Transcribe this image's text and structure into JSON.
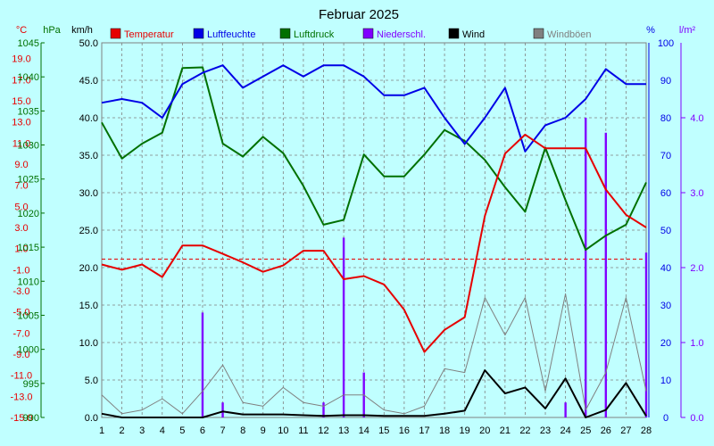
{
  "title": "Februar 2025",
  "colors": {
    "background": "#c0ffff",
    "grid": "#808080",
    "temperature": "#e60000",
    "humidity": "#0000e6",
    "pressure": "#007000",
    "precipitation": "#8000ff",
    "wind": "#000000",
    "gusts": "#808080"
  },
  "axis_units": {
    "temp": "°C",
    "pressure": "hPa",
    "wind": "km/h",
    "humidity": "%",
    "precip": "l/m²"
  },
  "axis_ticks": {
    "temp": [
      "19.0",
      "17.0",
      "15.0",
      "13.0",
      "11.0",
      "9.0",
      "7.0",
      "5.0",
      "3.0",
      "1.0",
      "-1.0",
      "-3.0",
      "-5.0",
      "-7.0",
      "-9.0",
      "-11.0",
      "-13.0",
      "-15.0"
    ],
    "pressure": [
      "1045",
      "1040",
      "1035",
      "1030",
      "1025",
      "1020",
      "1015",
      "1010",
      "1005",
      "1000",
      "995",
      "990"
    ],
    "wind": [
      "50.0",
      "45.0",
      "40.0",
      "35.0",
      "30.0",
      "25.0",
      "20.0",
      "15.0",
      "10.0",
      "5.0",
      "0.0"
    ],
    "humidity": [
      "100",
      "90",
      "80",
      "70",
      "60",
      "50",
      "40",
      "30",
      "20",
      "10",
      "0"
    ],
    "precip": [
      "4.0",
      "3.0",
      "2.0",
      "1.0",
      "0.0"
    ],
    "x": [
      "1",
      "2",
      "3",
      "4",
      "5",
      "6",
      "7",
      "8",
      "9",
      "10",
      "11",
      "12",
      "13",
      "14",
      "15",
      "16",
      "17",
      "18",
      "19",
      "20",
      "21",
      "22",
      "23",
      "24",
      "25",
      "26",
      "27",
      "28"
    ]
  },
  "legend": [
    {
      "label": "Temperatur",
      "color": "#e60000"
    },
    {
      "label": "Luftfeuchte",
      "color": "#0000e6"
    },
    {
      "label": "Luftdruck",
      "color": "#007000"
    },
    {
      "label": "Niederschl.",
      "color": "#8000ff"
    },
    {
      "label": "Wind",
      "color": "#000000"
    },
    {
      "label": "Windböen",
      "color": "#808080"
    }
  ],
  "chart_data": {
    "type": "line",
    "title": "Februar 2025",
    "x": [
      1,
      2,
      3,
      4,
      5,
      6,
      7,
      8,
      9,
      10,
      11,
      12,
      13,
      14,
      15,
      16,
      17,
      18,
      19,
      20,
      21,
      22,
      23,
      24,
      25,
      26,
      27,
      28
    ],
    "xlim": [
      1,
      28
    ],
    "grid": true,
    "legend_position": "top",
    "reference_line": {
      "axis": "temp",
      "value": 0.0
    },
    "series": [
      {
        "name": "Temperatur",
        "axis": "temp",
        "ylim": [
          -15,
          20.5
        ],
        "values": [
          -0.5,
          -1.0,
          -0.5,
          -1.7,
          1.3,
          1.3,
          0.5,
          -0.3,
          -1.2,
          -0.6,
          0.8,
          0.8,
          -1.9,
          -1.6,
          -2.4,
          -4.8,
          -8.8,
          -6.7,
          -5.5,
          4.1,
          10.0,
          11.8,
          10.5,
          10.5,
          10.5,
          6.6,
          4.2,
          3.0
        ]
      },
      {
        "name": "Luftfeuchte",
        "axis": "humidity",
        "ylim": [
          0,
          100
        ],
        "values": [
          84,
          85,
          84,
          80,
          89,
          92,
          94,
          88,
          91,
          94,
          91,
          94,
          94,
          91,
          86,
          86,
          88,
          80,
          73,
          80,
          88,
          71,
          78,
          80,
          85,
          93,
          89,
          89
        ]
      },
      {
        "name": "Luftdruck",
        "axis": "pressure",
        "ylim": [
          990,
          1045
        ],
        "values": [
          1033.3,
          1028.0,
          1030.2,
          1031.8,
          1041.3,
          1041.4,
          1030.2,
          1028.3,
          1031.2,
          1028.8,
          1024.0,
          1018.3,
          1019.0,
          1028.6,
          1025.4,
          1025.4,
          1028.6,
          1032.2,
          1030.6,
          1027.8,
          1023.8,
          1020.2,
          1029.6,
          1021.9,
          1014.6,
          1016.7,
          1018.3,
          1024.5
        ]
      },
      {
        "name": "Niederschl.",
        "axis": "precip",
        "ylim": [
          0,
          5
        ],
        "chart_type": "bar",
        "values": [
          0,
          0,
          0,
          0,
          0,
          1.4,
          0.2,
          0,
          0,
          0,
          0,
          0.2,
          2.4,
          0.6,
          0,
          0,
          0,
          0,
          0,
          0,
          0,
          0,
          0,
          0.2,
          4.0,
          3.8,
          0,
          2.2
        ]
      },
      {
        "name": "Wind",
        "axis": "wind",
        "ylim": [
          0,
          50
        ],
        "values": [
          0.5,
          0,
          0,
          0,
          0,
          0,
          0.8,
          0.4,
          0.4,
          0.4,
          0.3,
          0.2,
          0.3,
          0.3,
          0.2,
          0.2,
          0.2,
          0.5,
          0.9,
          6.3,
          3.2,
          4.0,
          1.2,
          5.2,
          0,
          1.0,
          4.6,
          0.2
        ]
      },
      {
        "name": "Windböen",
        "axis": "wind",
        "ylim": [
          0,
          50
        ],
        "values": [
          3.0,
          0.5,
          1.0,
          2.5,
          0.5,
          3.5,
          7.0,
          2.0,
          1.5,
          4.0,
          2.0,
          1.5,
          3.0,
          3.0,
          1.0,
          0.5,
          1.5,
          6.5,
          6.0,
          16.0,
          11.0,
          16.0,
          3.5,
          16.5,
          1.0,
          6.0,
          16.0,
          3.5
        ]
      }
    ]
  }
}
